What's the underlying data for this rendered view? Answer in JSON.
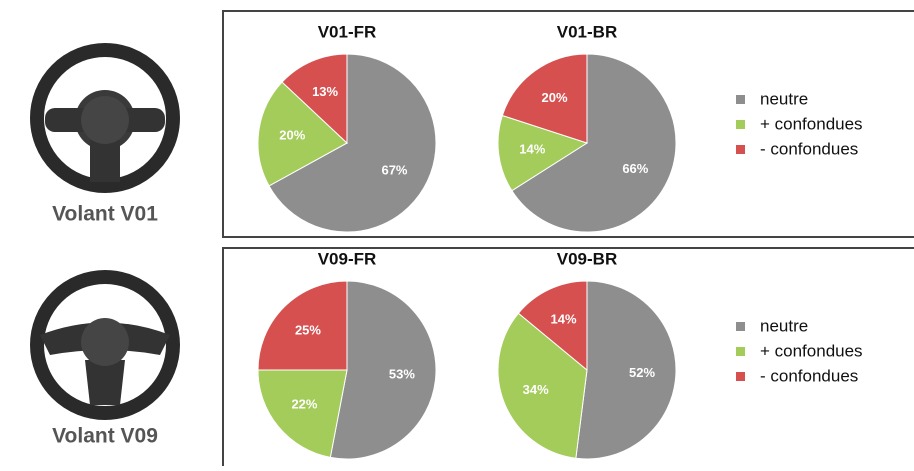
{
  "wheels": [
    "Volant V01",
    "Volant V09"
  ],
  "chart_data": [
    {
      "type": "pie",
      "categories": [
        "neutre",
        "+ confondues",
        "- confondues"
      ],
      "colors": [
        "#8e8e8e",
        "#a3cc5a",
        "#d65050"
      ],
      "series": [
        {
          "name": "V01-FR",
          "values": [
            67,
            20,
            13
          ],
          "value_labels": [
            "67%",
            "20%",
            "13%"
          ]
        },
        {
          "name": "V01-BR",
          "values": [
            66,
            14,
            20
          ],
          "value_labels": [
            "66%",
            "14%",
            "20%"
          ]
        }
      ]
    },
    {
      "type": "pie",
      "categories": [
        "neutre",
        "+ confondues",
        "- confondues"
      ],
      "colors": [
        "#8e8e8e",
        "#a3cc5a",
        "#d65050"
      ],
      "series": [
        {
          "name": "V09-FR",
          "values": [
            53,
            22,
            25
          ],
          "value_labels": [
            "53%",
            "22%",
            "25%"
          ]
        },
        {
          "name": "V09-BR",
          "values": [
            52,
            34,
            14
          ],
          "value_labels": [
            "52%",
            "34%",
            "14%"
          ]
        }
      ]
    }
  ]
}
